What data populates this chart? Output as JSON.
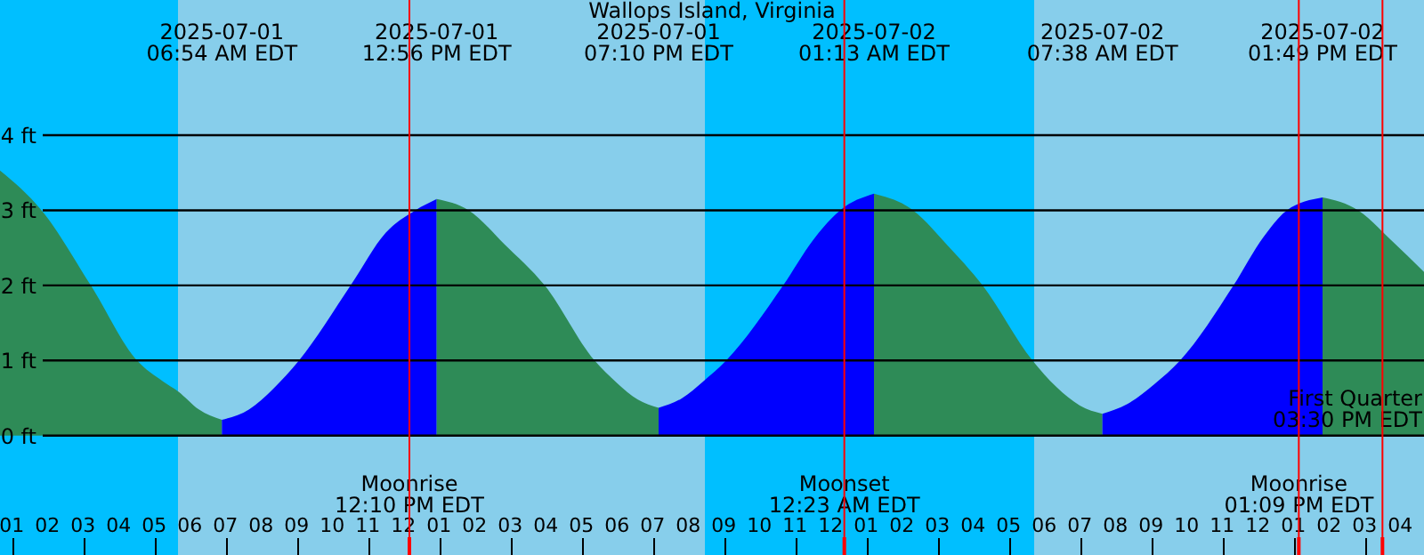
{
  "chart_data": {
    "type": "area",
    "title": "Wallops Island, Virginia",
    "xlim": [
      "2025-07-01T00:40",
      "2025-07-02T16:40"
    ],
    "xticks": [
      {
        "value": "2025-07-01T01:00",
        "label": "01"
      },
      {
        "value": "2025-07-01T02:00",
        "label": "02"
      },
      {
        "value": "2025-07-01T03:00",
        "label": "03"
      },
      {
        "value": "2025-07-01T04:00",
        "label": "04"
      },
      {
        "value": "2025-07-01T05:00",
        "label": "05"
      },
      {
        "value": "2025-07-01T06:00",
        "label": "06"
      },
      {
        "value": "2025-07-01T07:00",
        "label": "07"
      },
      {
        "value": "2025-07-01T08:00",
        "label": "08"
      },
      {
        "value": "2025-07-01T09:00",
        "label": "09"
      },
      {
        "value": "2025-07-01T10:00",
        "label": "10"
      },
      {
        "value": "2025-07-01T11:00",
        "label": "11"
      },
      {
        "value": "2025-07-01T12:00",
        "label": "12"
      },
      {
        "value": "2025-07-01T13:00",
        "label": "01"
      },
      {
        "value": "2025-07-01T14:00",
        "label": "02"
      },
      {
        "value": "2025-07-01T15:00",
        "label": "03"
      },
      {
        "value": "2025-07-01T16:00",
        "label": "04"
      },
      {
        "value": "2025-07-01T17:00",
        "label": "05"
      },
      {
        "value": "2025-07-01T18:00",
        "label": "06"
      },
      {
        "value": "2025-07-01T19:00",
        "label": "07"
      },
      {
        "value": "2025-07-01T20:00",
        "label": "08"
      },
      {
        "value": "2025-07-01T21:00",
        "label": "09"
      },
      {
        "value": "2025-07-01T22:00",
        "label": "10"
      },
      {
        "value": "2025-07-01T23:00",
        "label": "11"
      },
      {
        "value": "2025-07-02T00:00",
        "label": "12"
      },
      {
        "value": "2025-07-02T01:00",
        "label": "01"
      },
      {
        "value": "2025-07-02T02:00",
        "label": "02"
      },
      {
        "value": "2025-07-02T03:00",
        "label": "03"
      },
      {
        "value": "2025-07-02T04:00",
        "label": "04"
      },
      {
        "value": "2025-07-02T05:00",
        "label": "05"
      },
      {
        "value": "2025-07-02T06:00",
        "label": "06"
      },
      {
        "value": "2025-07-02T07:00",
        "label": "07"
      },
      {
        "value": "2025-07-02T08:00",
        "label": "08"
      },
      {
        "value": "2025-07-02T09:00",
        "label": "09"
      },
      {
        "value": "2025-07-02T10:00",
        "label": "10"
      },
      {
        "value": "2025-07-02T11:00",
        "label": "11"
      },
      {
        "value": "2025-07-02T12:00",
        "label": "12"
      },
      {
        "value": "2025-07-02T13:00",
        "label": "01"
      },
      {
        "value": "2025-07-02T14:00",
        "label": "02"
      },
      {
        "value": "2025-07-02T15:00",
        "label": "03"
      },
      {
        "value": "2025-07-02T16:00",
        "label": "04"
      }
    ],
    "ylim": [
      -1.59,
      5.8
    ],
    "yticks": [
      {
        "value": 0,
        "label": "0 ft"
      },
      {
        "value": 1,
        "label": "1 ft"
      },
      {
        "value": 2,
        "label": "2 ft"
      },
      {
        "value": 3,
        "label": "3 ft"
      },
      {
        "value": 4,
        "label": "4 ft"
      }
    ],
    "grid": "y",
    "bands": [
      {
        "axis": "x",
        "from": "2025-07-01T00:40",
        "to": "2025-07-01T05:40",
        "color": "#00bfff"
      },
      {
        "axis": "x",
        "from": "2025-07-01T05:40",
        "to": "2025-07-01T20:28",
        "color": "#87ceeb"
      },
      {
        "axis": "x",
        "from": "2025-07-01T20:28",
        "to": "2025-07-02T05:43",
        "color": "#00bfff"
      },
      {
        "axis": "x",
        "from": "2025-07-02T05:43",
        "to": "2025-07-02T16:40",
        "color": "#87ceeb"
      }
    ],
    "series": [
      {
        "color": "#2e8b57",
        "x": [
          "2025-07-01T00:40",
          "2025-07-01T01:50",
          "2025-07-01T03:13",
          "2025-07-01T04:31",
          "2025-07-01T05:15",
          "2025-07-01T05:40",
          "2025-07-01T06:15",
          "2025-07-01T06:54"
        ],
        "values": [
          3.53,
          3.0,
          2.0,
          1.0,
          0.72,
          0.59,
          0.35,
          0.21
        ]
      },
      {
        "color": "#0000ff",
        "x": [
          "2025-07-01T06:54",
          "2025-07-01T07:40",
          "2025-07-01T08:20",
          "2025-07-01T09:04",
          "2025-07-01T10:31",
          "2025-07-01T11:30",
          "2025-07-01T12:20",
          "2025-07-01T12:56"
        ],
        "values": [
          0.21,
          0.35,
          0.62,
          1.0,
          2.0,
          2.7,
          3.0,
          3.15
        ]
      },
      {
        "color": "#2e8b57",
        "x": [
          "2025-07-01T12:56",
          "2025-07-01T13:50",
          "2025-07-01T14:50",
          "2025-07-01T15:58",
          "2025-07-01T17:22",
          "2025-07-01T18:00",
          "2025-07-01T18:35",
          "2025-07-01T19:10"
        ],
        "values": [
          3.15,
          3.0,
          2.55,
          2.0,
          1.0,
          0.7,
          0.48,
          0.37
        ]
      },
      {
        "color": "#0000ff",
        "x": [
          "2025-07-01T19:10",
          "2025-07-01T19:50",
          "2025-07-01T20:25",
          "2025-07-01T21:04",
          "2025-07-01T22:40",
          "2025-07-01T23:30",
          "2025-07-02T00:16",
          "2025-07-02T01:13"
        ],
        "values": [
          0.37,
          0.5,
          0.72,
          1.0,
          2.0,
          2.6,
          3.0,
          3.22
        ]
      },
      {
        "color": "#2e8b57",
        "x": [
          "2025-07-02T01:13",
          "2025-07-02T02:19",
          "2025-07-02T03:15",
          "2025-07-02T04:16",
          "2025-07-02T05:40",
          "2025-07-02T06:20",
          "2025-07-02T07:00",
          "2025-07-02T07:38"
        ],
        "values": [
          3.22,
          3.0,
          2.55,
          2.0,
          1.0,
          0.65,
          0.4,
          0.29
        ]
      },
      {
        "color": "#0000ff",
        "x": [
          "2025-07-02T07:38",
          "2025-07-02T08:20",
          "2025-07-02T09:05",
          "2025-07-02T09:49",
          "2025-07-02T11:19",
          "2025-07-02T12:10",
          "2025-07-02T12:49",
          "2025-07-02T13:49"
        ],
        "values": [
          0.29,
          0.42,
          0.68,
          1.0,
          2.0,
          2.65,
          3.0,
          3.17
        ]
      },
      {
        "color": "#2e8b57",
        "x": [
          "2025-07-02T13:49",
          "2025-07-02T14:49",
          "2025-07-02T15:45",
          "2025-07-02T16:40"
        ],
        "values": [
          3.17,
          3.0,
          2.6,
          2.18
        ]
      }
    ],
    "x2lim": [
      "2025-07-01T00:40",
      "2025-07-02T16:40"
    ],
    "x2ticks": [
      {
        "value": "2025-07-01T06:54",
        "label": "2025-07-01\n06:54 AM EDT"
      },
      {
        "value": "2025-07-01T12:56",
        "label": "2025-07-01\n12:56 PM EDT"
      },
      {
        "value": "2025-07-01T19:10",
        "label": "2025-07-01\n07:10 PM EDT"
      },
      {
        "value": "2025-07-02T01:13",
        "label": "2025-07-02\n01:13 AM EDT"
      },
      {
        "value": "2025-07-02T07:38",
        "label": "2025-07-02\n07:38 AM EDT"
      },
      {
        "value": "2025-07-02T13:49",
        "label": "2025-07-02\n01:49 PM EDT"
      }
    ],
    "ref_lines": [
      {
        "axis": "x",
        "value": "2025-07-01T12:10",
        "label": "Moonrise\n12:10 PM EDT",
        "color": "#ff0000"
      },
      {
        "axis": "x",
        "value": "2025-07-02T00:23",
        "label": "Moonset\n12:23 AM EDT",
        "color": "#ff0000"
      },
      {
        "axis": "x",
        "value": "2025-07-02T13:09",
        "label": "Moonrise\n01:09 PM EDT",
        "color": "#ff0000"
      },
      {
        "axis": "x",
        "value": "2025-07-02T15:30",
        "label": "First Quarter\n03:30 PM EDT",
        "color": "#ff0000"
      }
    ]
  }
}
